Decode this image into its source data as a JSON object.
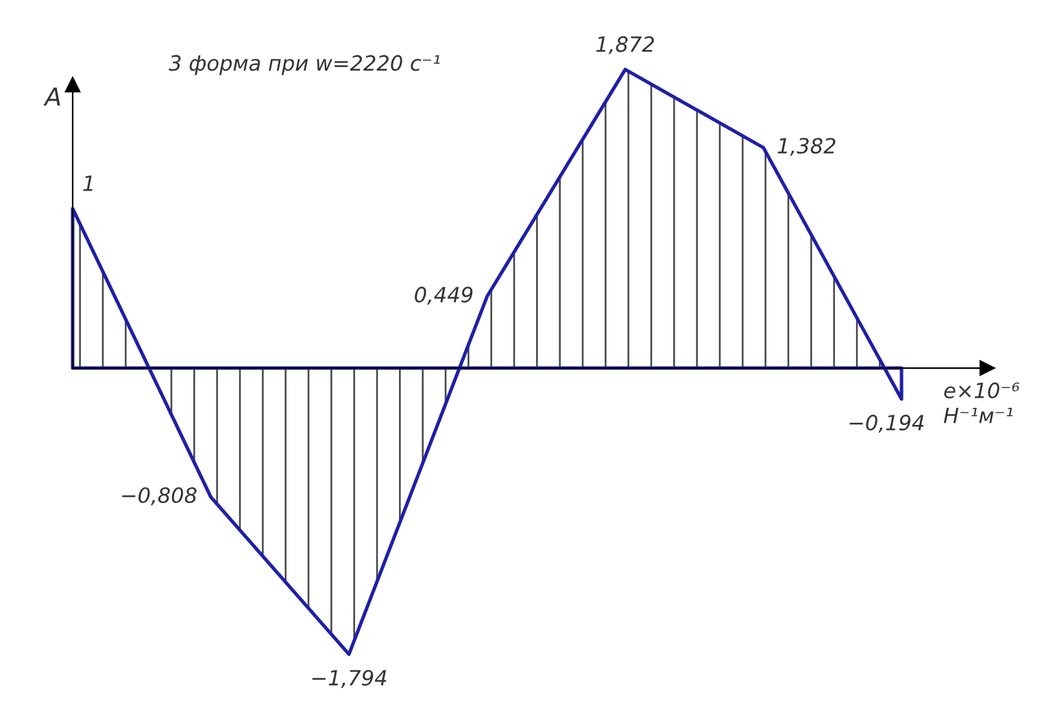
{
  "chart_data": {
    "type": "area",
    "title": "3 форма при w=2220 с⁻¹",
    "xlabel": "e×10⁻⁶\nН⁻¹м⁻¹",
    "ylabel": "A",
    "categories": [
      null,
      null,
      null,
      null,
      null,
      null,
      null
    ],
    "series": [
      {
        "color": "#1f1fa8",
        "values": [
          1,
          -0.808,
          -1.794,
          0.449,
          1.872,
          1.382,
          -0.194
        ],
        "value_labels": [
          "1",
          "−0,808",
          "−1,794",
          "0,449",
          "1,872",
          "1,382",
          "−0,194"
        ]
      }
    ]
  }
}
